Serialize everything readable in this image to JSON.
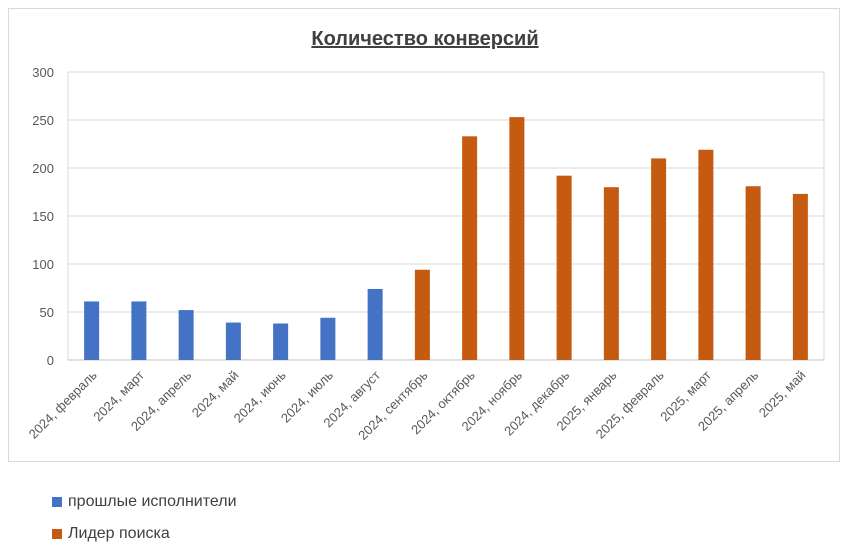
{
  "chart_data": {
    "type": "bar",
    "title": "Количество конверсий",
    "categories": [
      "2024, февраль",
      "2024, март",
      "2024, апрель",
      "2024, май",
      "2024, июнь",
      "2024, июль",
      "2024, август",
      "2024, сентябрь",
      "2024, октябрь",
      "2024, ноябрь",
      "2024, декабрь",
      "2025, январь",
      "2025, февраль",
      "2025, март",
      "2025, апрель",
      "2025, май"
    ],
    "series": [
      {
        "name": "прошлые исполнители",
        "color": "#4472c4",
        "values": [
          61,
          61,
          52,
          39,
          38,
          44,
          74,
          null,
          null,
          null,
          null,
          null,
          null,
          null,
          null,
          null
        ]
      },
      {
        "name": "Лидер поиска",
        "color": "#c55a11",
        "values": [
          null,
          null,
          null,
          null,
          null,
          null,
          null,
          94,
          233,
          253,
          192,
          180,
          210,
          219,
          181,
          173
        ]
      }
    ],
    "y_ticks": [
      0,
      50,
      100,
      150,
      200,
      250,
      300
    ],
    "ylim": [
      0,
      300
    ],
    "grid": true,
    "legend_position": "bottom-left"
  }
}
